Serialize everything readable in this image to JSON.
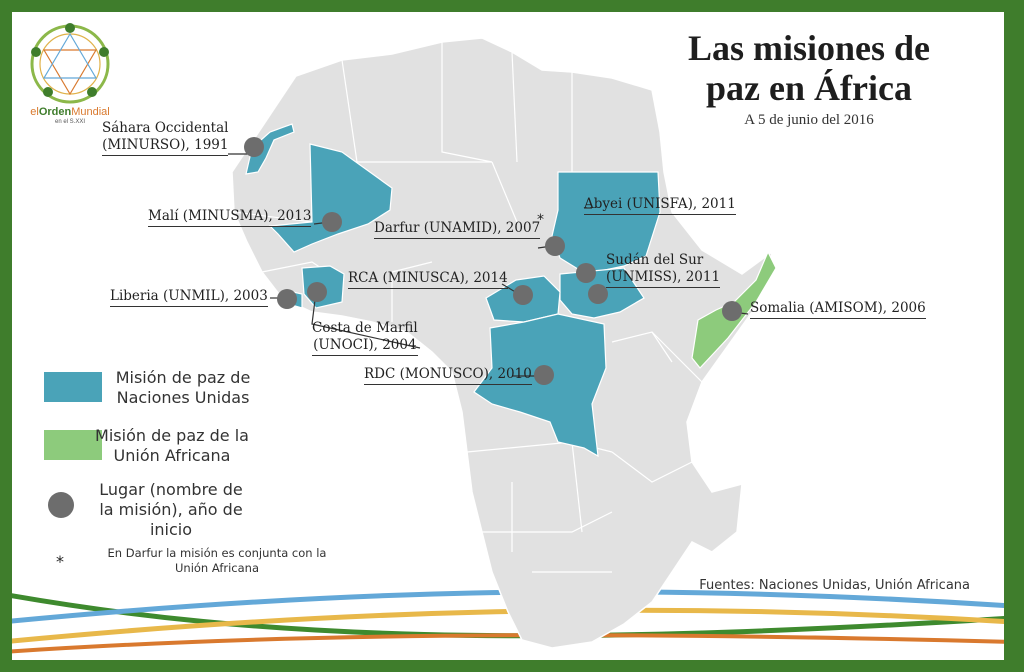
{
  "title_line1": "Las misiones de",
  "title_line2": "paz en África",
  "subtitle": "A 5 de junio del 2016",
  "logo": {
    "name_prefix": "el",
    "name_highlight": "Orden",
    "name_suffix": "Mundial",
    "tagline": "en el S.XXI"
  },
  "missions": {
    "sahara": {
      "line1": "Sáhara Occidental",
      "line2": "(MINURSO), 1991"
    },
    "mali": "Malí (MINUSMA), 2013",
    "liberia": "Liberia (UNMIL), 2003",
    "costa": {
      "line1": "Costa de Marfil",
      "line2": "(UNOCI), 2004"
    },
    "darfur": "Darfur (UNAMID), 2007",
    "abyei": "Abyei (UNISFA), 2011",
    "sudan_sur": {
      "line1": "Sudán del Sur",
      "line2": "(UNMISS), 2011"
    },
    "rca": "RCA (MINUSCA), 2014",
    "rdc": "RDC (MONUSCO), 2010",
    "somalia": "Somalia (AMISOM), 2006"
  },
  "darfur_asterisk": "*",
  "legend": {
    "un": {
      "line1": "Misión de paz de",
      "line2": "Naciones Unidas",
      "color": "#4aa3b8"
    },
    "au": {
      "line1": "Misión de paz de la",
      "line2": "Unión Africana",
      "color": "#8dcb7c"
    },
    "point": {
      "line1": "Lugar (nombre de",
      "line2": "la misión), año de",
      "line3": "inicio",
      "color": "#6d6d6d"
    }
  },
  "note": {
    "asterisk": "*",
    "line1": "En Darfur la misión es conjunta con la",
    "line2": "Unión Africana"
  },
  "sources": "Fuentes: Naciones Unidas, Unión Africana",
  "colors": {
    "land": "#e1e1e1",
    "border": "#ffffff",
    "frame": "#3f7d2c",
    "un": "#4aa3b8",
    "au": "#8dcb7c",
    "dot": "#6d6d6d"
  }
}
